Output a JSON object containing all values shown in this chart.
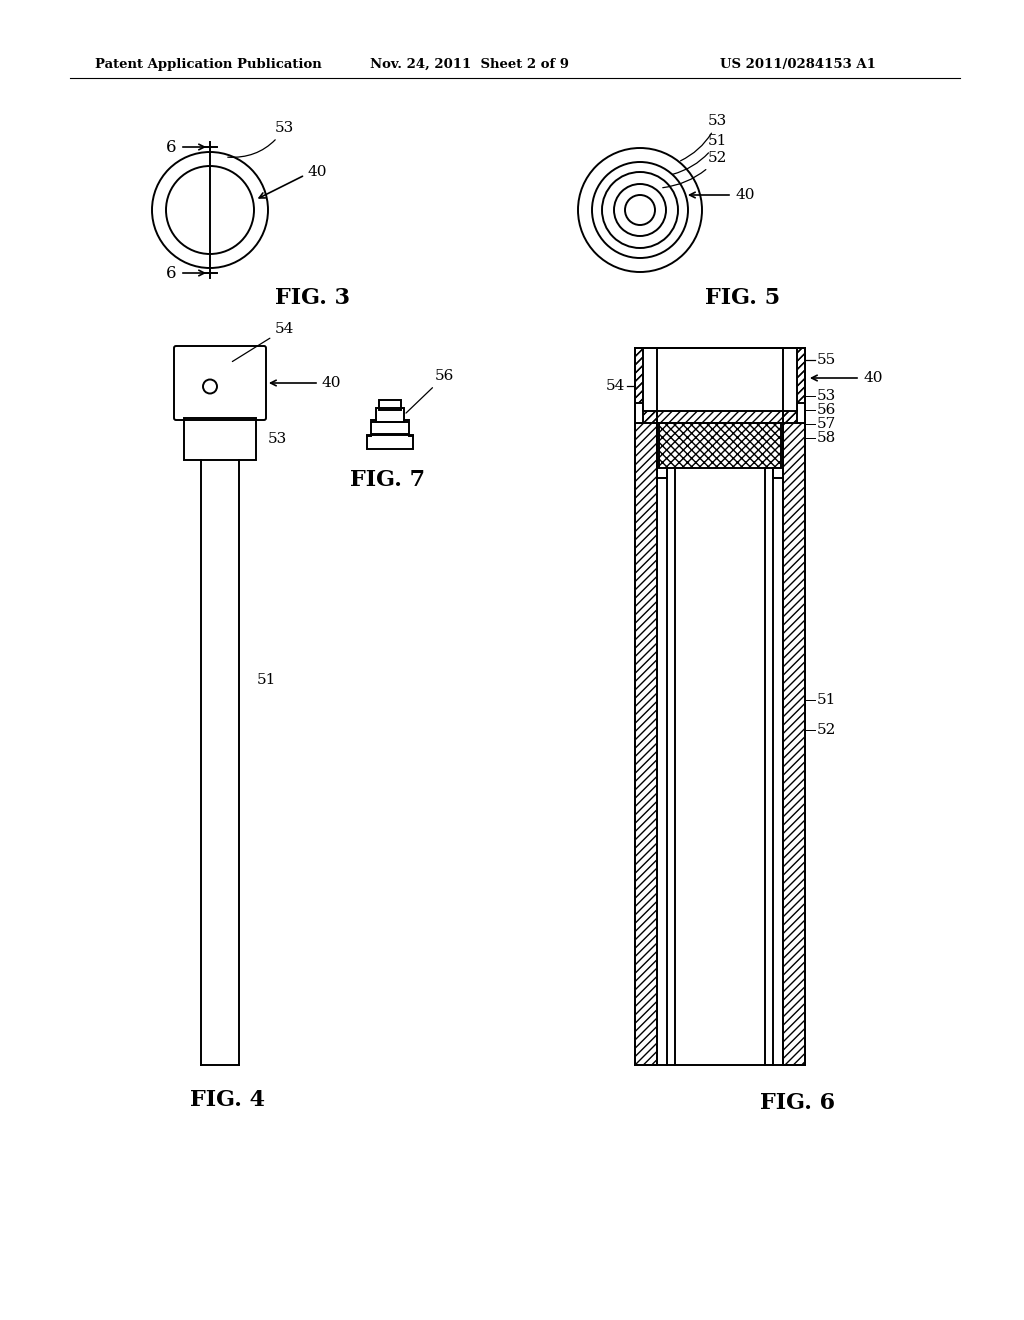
{
  "header_left": "Patent Application Publication",
  "header_mid": "Nov. 24, 2011  Sheet 2 of 9",
  "header_right": "US 2011/0284153 A1",
  "fig3_label": "FIG. 3",
  "fig4_label": "FIG. 4",
  "fig5_label": "FIG. 5",
  "fig6_label": "FIG. 6",
  "fig7_label": "FIG. 7",
  "bg_color": "#ffffff",
  "line_color": "#000000"
}
